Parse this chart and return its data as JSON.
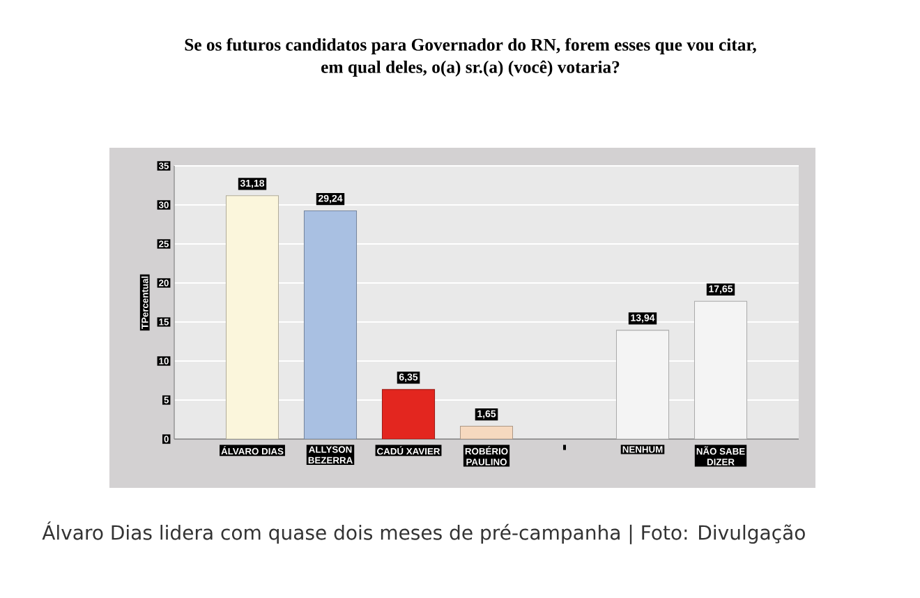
{
  "chart_data": {
    "type": "bar",
    "title": "Se os futuros candidatos para Governador do RN, forem esses que vou citar, em qual deles, o(a) sr.(a) (você) votaria?",
    "ylabel": "TPercentual",
    "categories": [
      "ÁLVARO DIAS",
      "ALLYSON BEZERRA",
      "CADÚ XAVIER",
      "ROBÉRIO PAULINO",
      null,
      "NENHUM",
      "NÃO SABE DIZER"
    ],
    "values": [
      31.18,
      29.24,
      6.35,
      1.65,
      null,
      13.94,
      17.65
    ],
    "value_labels": [
      "31,18",
      "29,24",
      "6,35",
      "1,65",
      null,
      "13,94",
      "17,65"
    ],
    "colors": [
      "#fbf6dc",
      "#a9c0e2",
      "#e3261f",
      "#f6d9bf",
      "#f4f4f4",
      "#f4f4f4",
      "#f4f4f4"
    ],
    "ylim": [
      0,
      35
    ],
    "yticks": [
      0,
      5,
      10,
      15,
      20,
      25,
      30,
      35
    ],
    "grid": "y",
    "annotations": [
      "Álvaro Dias lidera com quase dois meses de pré-campanha | Foto: Divulgação"
    ]
  }
}
